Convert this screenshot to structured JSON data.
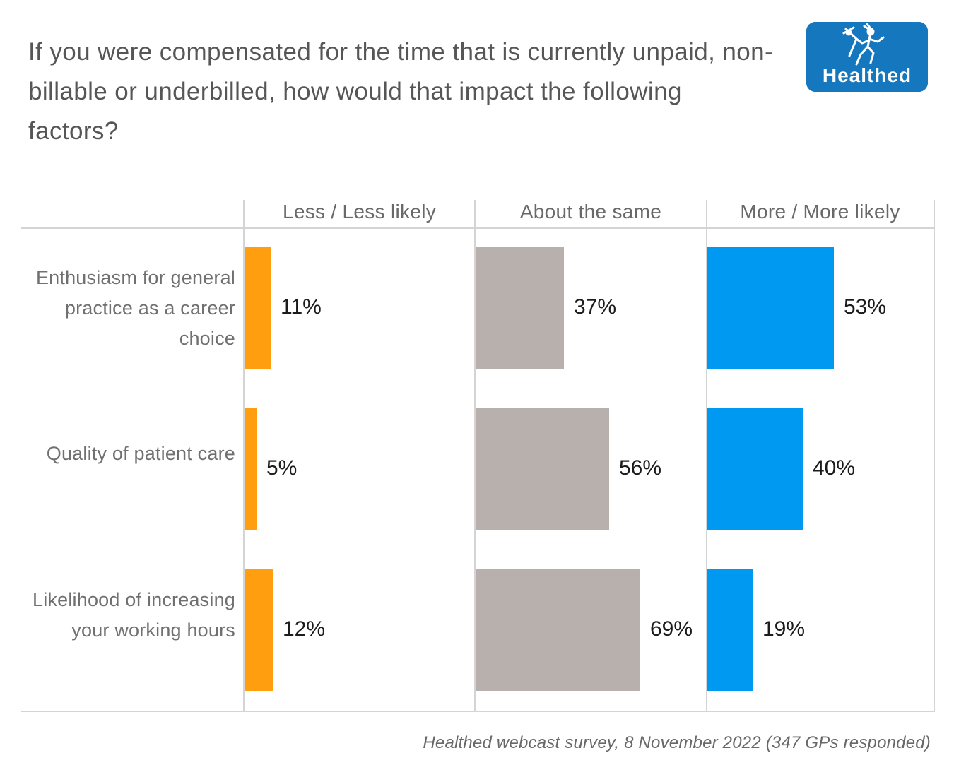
{
  "title": {
    "text": "If you were compensated for the time that is currently unpaid, non-billable or underbilled, how would that impact the following factors?"
  },
  "logo": {
    "brand": "Healthed",
    "icon": "hermes-runner-icon",
    "bg_color": "#1577BE"
  },
  "chart_data": {
    "type": "bar",
    "orientation": "horizontal",
    "title": "",
    "categories": [
      "Enthusiasm for general practice as a career choice",
      "Quality of patient care",
      "Likelihood of increasing your working hours"
    ],
    "series": [
      {
        "name": "Less / Less likely",
        "color": "#FF9E0F",
        "values": [
          11,
          5,
          12
        ]
      },
      {
        "name": "About the same",
        "color": "#B8B0AC",
        "values": [
          37,
          56,
          69
        ]
      },
      {
        "name": "More / More likely",
        "color": "#0099F2",
        "values": [
          53,
          40,
          19
        ]
      }
    ],
    "value_format": "percent",
    "value_labels_shown": true,
    "xlim": [
      0,
      97
    ],
    "grid": "panel-dividers",
    "legend_position": "column-headers"
  },
  "footer": {
    "text": "Healthed webcast survey, 8 November 2022 (347 GPs responded)"
  },
  "colors": {
    "less": "#FF9E0F",
    "same": "#B8B0AC",
    "more": "#0099F2",
    "gridline": "#d4d4d4",
    "title_text": "#565656",
    "label_text": "#707070",
    "value_text": "#1c1c1c",
    "logo_blue": "#1577BE"
  }
}
